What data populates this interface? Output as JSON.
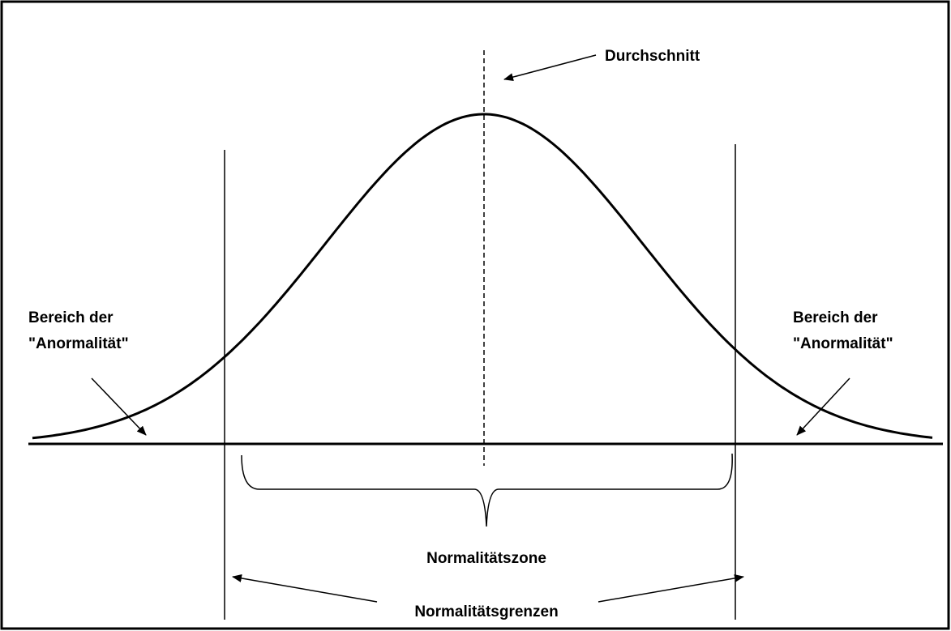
{
  "labels": {
    "mean": "Durchschnitt",
    "left_region": [
      "Bereich der",
      "\"Anormalität\""
    ],
    "right_region": [
      "Bereich der",
      "\"Anormalität\""
    ],
    "zone": "Normalitätszone",
    "limits": "Normalitätsgrenzen"
  }
}
